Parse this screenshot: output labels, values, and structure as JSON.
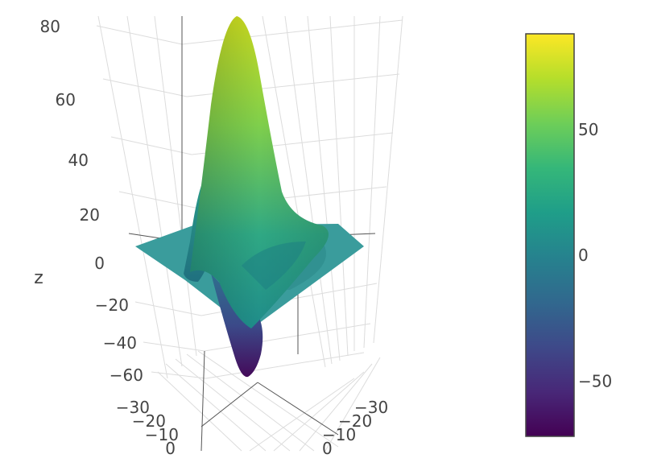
{
  "chart_data": {
    "type": "surface",
    "colorscale": "viridis",
    "colorscale_stops": [
      "#440154",
      "#482878",
      "#3e4989",
      "#31688e",
      "#26828e",
      "#1f9e89",
      "#35b779",
      "#6ece58",
      "#b5de2b",
      "#fde725"
    ],
    "zlabel": "z",
    "zlim": [
      -70,
      85
    ],
    "z_ticks": [
      "80",
      "60",
      "40",
      "20",
      "0",
      "−20",
      "−40",
      "−60"
    ],
    "x_ticks": [
      "−30",
      "−20",
      "−10",
      "0"
    ],
    "y_ticks": [
      "−30",
      "−20",
      "−10",
      "0"
    ],
    "surface_extrema": {
      "max_z": 85,
      "min_z": -70
    },
    "colorbar": {
      "range": [
        -72,
        88
      ],
      "ticks": [
        {
          "value": 50,
          "label": "50"
        },
        {
          "value": 0,
          "label": "0"
        },
        {
          "value": -50,
          "label": "−50"
        }
      ]
    }
  }
}
